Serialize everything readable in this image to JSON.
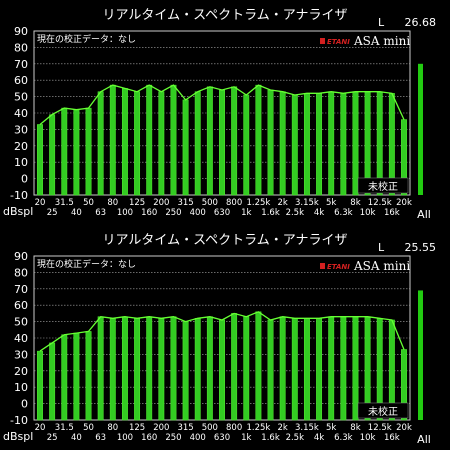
{
  "app": {
    "title": "リアルタイム・スペクトラム・アナライザ",
    "brand_logo": "ETANI",
    "brand_name": "ASA mini",
    "calibration_label": "現在の校正データ：なし",
    "uncalibrated_badge": "未校正",
    "unit_label": "dBspl",
    "all_label": "All",
    "channel_label": "L"
  },
  "colors": {
    "background": "#000000",
    "bar_fill": "#33cc22",
    "bar_stroke": "#55ee33",
    "curve": "#66ff33",
    "all_bar": "#22cc11",
    "grid": "#aaaaaa",
    "logo_red": "#d42020"
  },
  "panels": [
    {
      "channel": "L",
      "level_readout": "26.68"
    },
    {
      "channel": "L",
      "level_readout": "25.55"
    }
  ],
  "chart_data": [
    {
      "type": "bar",
      "title": "リアルタイム・スペクトラム・アナライザ",
      "ylabel": "dBspl",
      "ylim": [
        -10,
        90
      ],
      "yticks": [
        90,
        80,
        70,
        60,
        50,
        40,
        30,
        20,
        10,
        0,
        -10
      ],
      "grid": true,
      "categories": [
        "20",
        "25",
        "31.5",
        "40",
        "50",
        "63",
        "80",
        "100",
        "125",
        "160",
        "200",
        "250",
        "315",
        "400",
        "500",
        "630",
        "800",
        "1k",
        "1.25k",
        "1.6k",
        "2k",
        "2.5k",
        "3.15k",
        "4k",
        "5k",
        "6.3k",
        "8k",
        "10k",
        "12.5k",
        "16k",
        "20k"
      ],
      "xtick_labels_upper": [
        "20",
        "31.5",
        "50",
        "80",
        "125",
        "200",
        "315",
        "500",
        "800",
        "1.25k",
        "2k",
        "3.15k",
        "5k",
        "8k",
        "12.5k",
        "20k"
      ],
      "xtick_labels_lower": [
        "25",
        "40",
        "63",
        "100",
        "160",
        "250",
        "400",
        "630",
        "1k",
        "1.6k",
        "2.5k",
        "4k",
        "6.3k",
        "10k",
        "16k"
      ],
      "values": [
        33,
        39,
        43,
        42,
        43,
        53,
        57,
        55,
        53,
        57,
        53,
        57,
        48,
        53,
        56,
        54,
        56,
        51,
        57,
        54,
        53,
        51,
        52,
        52,
        53,
        52,
        53,
        53,
        53,
        52,
        36
      ],
      "all_value": 70,
      "all_label": "All"
    },
    {
      "type": "bar",
      "title": "リアルタイム・スペクトラム・アナライザ",
      "ylabel": "dBspl",
      "ylim": [
        -10,
        90
      ],
      "yticks": [
        90,
        80,
        70,
        60,
        50,
        40,
        30,
        20,
        10,
        0,
        -10
      ],
      "grid": true,
      "categories": [
        "20",
        "25",
        "31.5",
        "40",
        "50",
        "63",
        "80",
        "100",
        "125",
        "160",
        "200",
        "250",
        "315",
        "400",
        "500",
        "630",
        "800",
        "1k",
        "1.25k",
        "1.6k",
        "2k",
        "2.5k",
        "3.15k",
        "4k",
        "5k",
        "6.3k",
        "8k",
        "10k",
        "12.5k",
        "16k",
        "20k"
      ],
      "xtick_labels_upper": [
        "20",
        "31.5",
        "50",
        "80",
        "125",
        "200",
        "315",
        "500",
        "800",
        "1.25k",
        "2k",
        "3.15k",
        "5k",
        "8k",
        "12.5k",
        "20k"
      ],
      "xtick_labels_lower": [
        "25",
        "40",
        "63",
        "100",
        "160",
        "250",
        "400",
        "630",
        "1k",
        "1.6k",
        "2.5k",
        "4k",
        "6.3k",
        "10k",
        "16k"
      ],
      "values": [
        32,
        37,
        42,
        43,
        44,
        53,
        52,
        53,
        52,
        53,
        52,
        53,
        50,
        52,
        53,
        51,
        55,
        53,
        56,
        51,
        53,
        52,
        52,
        52,
        53,
        53,
        53,
        53,
        52,
        51,
        33
      ],
      "all_value": 69,
      "all_label": "All"
    }
  ]
}
